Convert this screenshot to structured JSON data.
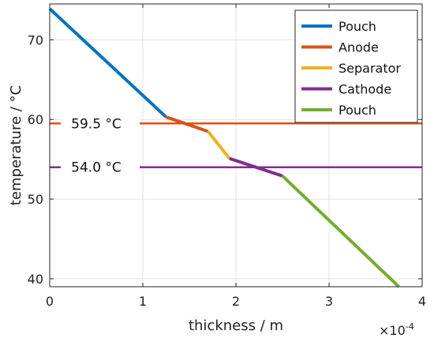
{
  "chart_data": {
    "type": "line",
    "xlabel": "thickness / m",
    "ylabel": "temperature / °C",
    "x_exponent": "×10",
    "x_exponent_power": "-4",
    "xlim": [
      0,
      4
    ],
    "ylim": [
      39,
      74.5
    ],
    "xticks": [
      0,
      1,
      2,
      3,
      4
    ],
    "xtick_labels": [
      "0",
      "1",
      "2",
      "3",
      "4"
    ],
    "yticks": [
      40,
      50,
      60,
      70
    ],
    "ytick_labels": [
      "40",
      "50",
      "60",
      "70"
    ],
    "grid": true,
    "legend_position": "top-right",
    "series": [
      {
        "name": "Pouch",
        "color": "#0072BD",
        "x": [
          0,
          1.25
        ],
        "y": [
          73.9,
          60.3
        ]
      },
      {
        "name": "Anode",
        "color": "#D95319",
        "x": [
          1.25,
          1.7
        ],
        "y": [
          60.3,
          58.5
        ]
      },
      {
        "name": "Separator",
        "color": "#EDB120",
        "x": [
          1.7,
          1.93
        ],
        "y": [
          58.5,
          55.1
        ]
      },
      {
        "name": "Cathode",
        "color": "#7E2F8E",
        "x": [
          1.93,
          2.5
        ],
        "y": [
          55.1,
          52.9
        ]
      },
      {
        "name": "Pouch",
        "color": "#77AC30",
        "x": [
          2.5,
          3.75
        ],
        "y": [
          52.9,
          39.0
        ]
      }
    ],
    "reference_lines": [
      {
        "y": 59.5,
        "color": "#D95319",
        "label": "59.5 °C"
      },
      {
        "y": 54.0,
        "color": "#7E2F8E",
        "label": "54.0 °C"
      }
    ]
  }
}
